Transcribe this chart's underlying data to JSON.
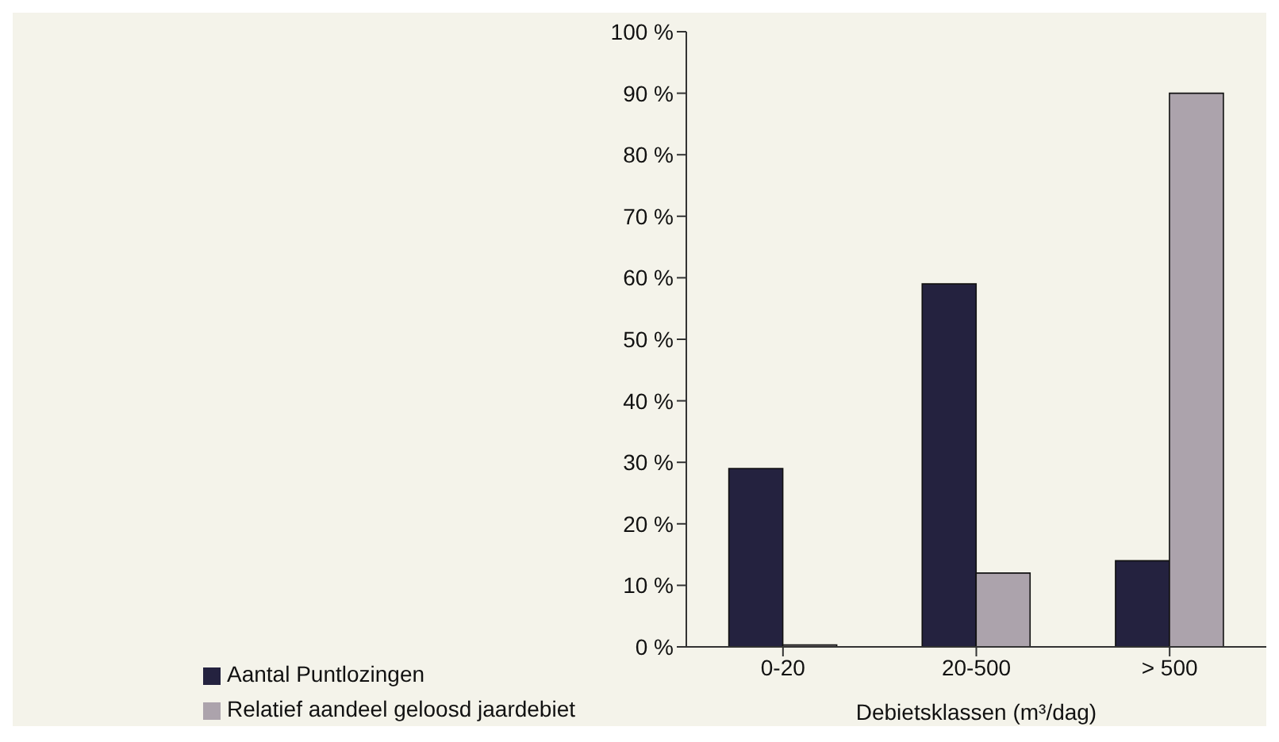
{
  "chart_data": {
    "type": "bar",
    "xlabel": "Debietsklassen (m³/dag)",
    "categories": [
      "0-20",
      "20-500",
      "> 500"
    ],
    "series": [
      {
        "name": "Aantal Puntlozingen",
        "color": "#24223f",
        "values": [
          29,
          59,
          14
        ]
      },
      {
        "name": "Relatief aandeel geloosd jaardebiet",
        "color": "#aca3ac",
        "values": [
          0.3,
          12,
          90
        ]
      }
    ],
    "ylim": [
      0,
      100
    ],
    "yticks": [
      {
        "value": 0,
        "label": "0 %"
      },
      {
        "value": 10,
        "label": "10 %"
      },
      {
        "value": 20,
        "label": "20 %"
      },
      {
        "value": 30,
        "label": "30 %"
      },
      {
        "value": 40,
        "label": "40 %"
      },
      {
        "value": 50,
        "label": "50 %"
      },
      {
        "value": 60,
        "label": "60 %"
      },
      {
        "value": 70,
        "label": "70 %"
      },
      {
        "value": 80,
        "label": "80 %"
      },
      {
        "value": 90,
        "label": "90 %"
      },
      {
        "value": 100,
        "label": "100 %"
      }
    ],
    "grid": false,
    "legend": "bottom left"
  }
}
